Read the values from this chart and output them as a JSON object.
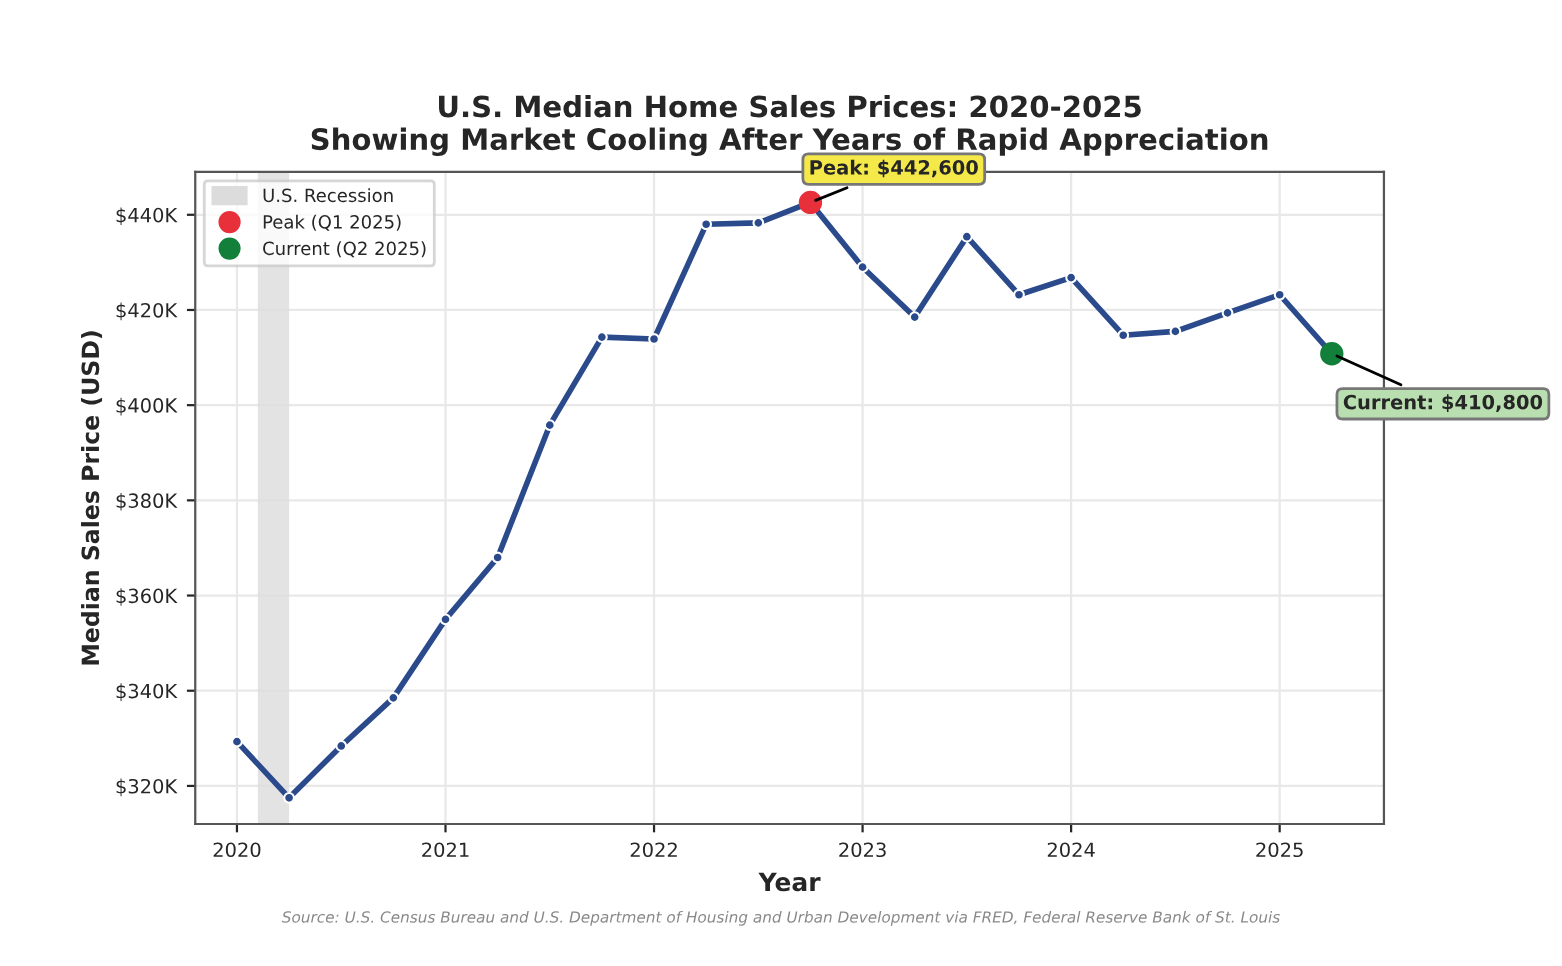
{
  "chart_data": {
    "type": "line",
    "title": "U.S. Median Home Sales Prices: 2020-2025\nShowing Market Cooling After Years of Rapid Appreciation",
    "xlabel": "Year",
    "ylabel": "Median Sales Price (USD)",
    "x": [
      2020.0,
      2020.25,
      2020.5,
      2020.75,
      2021.0,
      2021.25,
      2021.5,
      2021.75,
      2022.0,
      2022.25,
      2022.5,
      2022.75,
      2023.0,
      2023.25,
      2023.5,
      2023.75,
      2024.0,
      2024.25,
      2024.5,
      2024.75,
      2025.0,
      2025.25
    ],
    "series": [
      {
        "color": "#2a4a8c",
        "values": [
          329.3,
          317.5,
          328.4,
          338.5,
          355.0,
          368.0,
          395.8,
          414.3,
          413.9,
          438.0,
          438.3,
          442.6,
          429.0,
          418.5,
          435.4,
          423.2,
          426.8,
          414.7,
          415.5,
          419.4,
          423.2,
          410.8
        ]
      },
      {
        "type": "scatter",
        "name": "Peak (Q1 2025)",
        "color": "#e8303a",
        "x": [
          2022.75
        ],
        "values": [
          442.6
        ]
      },
      {
        "type": "scatter",
        "name": "Current (Q2 2025)",
        "color": "#12803a",
        "x": [
          2025.25
        ],
        "values": [
          410.8
        ]
      }
    ],
    "xlim": [
      2019.8,
      2025.5
    ],
    "xticks": [
      2020,
      2021,
      2022,
      2023,
      2024,
      2025
    ],
    "ylim": [
      312,
      449
    ],
    "yticks": [
      {
        "value": 320,
        "label": "$320K"
      },
      {
        "value": 340,
        "label": "$340K"
      },
      {
        "value": 360,
        "label": "$360K"
      },
      {
        "value": 380,
        "label": "$380K"
      },
      {
        "value": 400,
        "label": "$400K"
      },
      {
        "value": 420,
        "label": "$420K"
      },
      {
        "value": 440,
        "label": "$440K"
      }
    ],
    "bands": [
      {
        "axis": "x",
        "from": 2020.1,
        "to": 2020.25,
        "label": "U.S. Recession",
        "color": "#dcdcdc"
      }
    ],
    "annotations": [
      {
        "text": "Peak: $442,600",
        "x": 2022.75,
        "y": 442.6
      },
      {
        "text": "Current: $410,800",
        "x": 2025.25,
        "y": 410.8
      },
      "Source: U.S. Census Bureau and U.S. Department of Housing and Urban Development via FRED, Federal Reserve Bank of St. Louis"
    ],
    "grid": true,
    "legend": "top left",
    "marker": "circle",
    "line_style": "solid"
  }
}
